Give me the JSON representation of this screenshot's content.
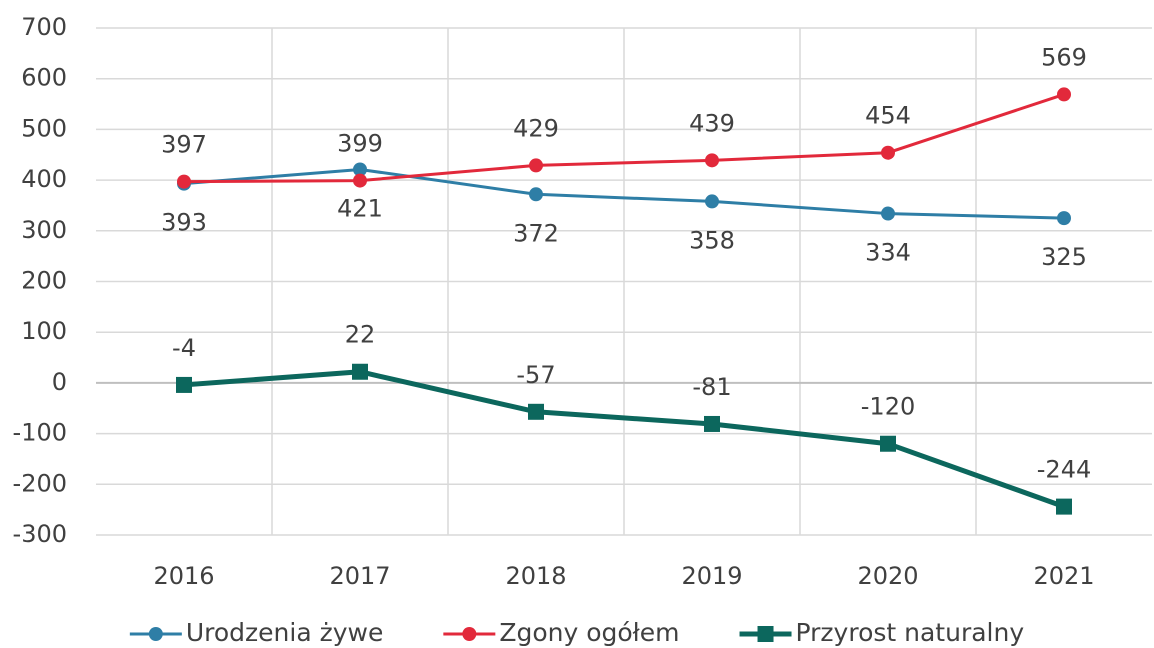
{
  "chart_data": {
    "type": "line",
    "categories": [
      "2016",
      "2017",
      "2018",
      "2019",
      "2020",
      "2021"
    ],
    "series": [
      {
        "name": "Urodzenia żywe",
        "color": "#2e7ea6",
        "marker": "circle",
        "labels": "below",
        "values": [
          393,
          421,
          372,
          358,
          334,
          325
        ]
      },
      {
        "name": "Zgony ogółem",
        "color": "#e2293b",
        "marker": "circle",
        "labels": "above",
        "values": [
          397,
          399,
          429,
          439,
          454,
          569
        ]
      },
      {
        "name": "Przyrost naturalny",
        "color": "#0c675d",
        "marker": "square",
        "labels": "above",
        "values": [
          -4,
          22,
          -57,
          -81,
          -120,
          -244
        ]
      }
    ],
    "ylim": [
      -300,
      700
    ],
    "yticks": [
      -300,
      -200,
      -100,
      0,
      100,
      200,
      300,
      400,
      500,
      600,
      700
    ],
    "grid": true,
    "legend": "bottom"
  }
}
